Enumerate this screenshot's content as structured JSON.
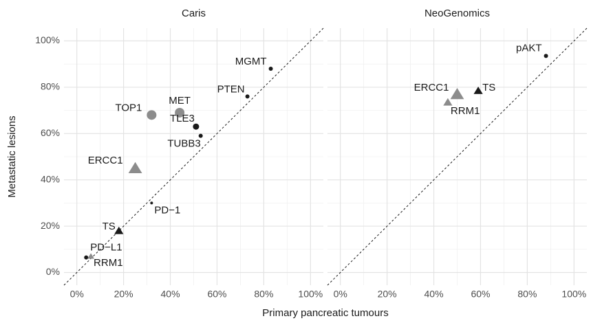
{
  "x_label": "Primary pancreatic tumours",
  "y_label": "Metastatic lesions",
  "chart_data": [
    {
      "type": "scatter",
      "title": "Caris",
      "identity_line": true,
      "grid": true,
      "minor_grid": true,
      "xlim": [
        -5.5,
        105.5
      ],
      "ylim": [
        -5.5,
        105.5
      ],
      "xticks": [
        {
          "value": 0,
          "label": "0%"
        },
        {
          "value": 20,
          "label": "20%"
        },
        {
          "value": 40,
          "label": "40%"
        },
        {
          "value": 60,
          "label": "60%"
        },
        {
          "value": 80,
          "label": "80%"
        },
        {
          "value": 100,
          "label": "100%"
        }
      ],
      "yticks": [
        {
          "value": 0,
          "label": "0%"
        },
        {
          "value": 20,
          "label": "20%"
        },
        {
          "value": 40,
          "label": "40%"
        },
        {
          "value": 60,
          "label": "60%"
        },
        {
          "value": 80,
          "label": "80%"
        },
        {
          "value": 100,
          "label": "100%"
        }
      ],
      "labels": [
        "MGMT",
        "PTEN",
        "MET",
        "TOP1",
        "TLE3",
        "TUBB3",
        "ERCC1",
        "PD−1",
        "TS",
        "PD−L1",
        "RRM1"
      ],
      "x": [
        83,
        73,
        44,
        32,
        51,
        53,
        25,
        32,
        18,
        4,
        6
      ],
      "values": [
        88,
        76,
        69,
        68,
        63,
        59,
        45,
        30,
        18,
        6.5,
        7
      ],
      "shapes": [
        "circle",
        "circle",
        "circle",
        "circle",
        "circle",
        "circle",
        "triangle",
        "circle",
        "triangle",
        "circle",
        "triangle"
      ],
      "colors": [
        "#1a1a1a",
        "#1a1a1a",
        "#8c8c8c",
        "#8c8c8c",
        "#1a1a1a",
        "#1a1a1a",
        "#8c8c8c",
        "#1a1a1a",
        "#1a1a1a",
        "#1a1a1a",
        "#8c8c8c"
      ],
      "sizes": [
        "small",
        "small",
        "large",
        "large",
        "medium",
        "small",
        "large",
        "tiny",
        "medium",
        "small",
        "small"
      ]
    },
    {
      "type": "scatter",
      "title": "NeoGenomics",
      "identity_line": true,
      "grid": true,
      "minor_grid": true,
      "xlim": [
        -5.5,
        105.5
      ],
      "ylim": [
        -5.5,
        105.5
      ],
      "xticks": [
        {
          "value": 0,
          "label": "0%"
        },
        {
          "value": 20,
          "label": "20%"
        },
        {
          "value": 40,
          "label": "40%"
        },
        {
          "value": 60,
          "label": "60%"
        },
        {
          "value": 80,
          "label": "80%"
        },
        {
          "value": 100,
          "label": "100%"
        }
      ],
      "yticks": [
        {
          "value": 0,
          "label": "0%"
        },
        {
          "value": 20,
          "label": "20%"
        },
        {
          "value": 40,
          "label": "40%"
        },
        {
          "value": 60,
          "label": "60%"
        },
        {
          "value": 80,
          "label": "80%"
        },
        {
          "value": 100,
          "label": "100%"
        }
      ],
      "labels": [
        "pAKT",
        "ERCC1",
        "TS",
        "RRM1"
      ],
      "x": [
        88,
        50,
        59,
        46
      ],
      "values": [
        93.5,
        77,
        78.5,
        73.5
      ],
      "shapes": [
        "circle",
        "triangle",
        "triangle",
        "triangle"
      ],
      "colors": [
        "#1a1a1a",
        "#8c8c8c",
        "#1a1a1a",
        "#8c8c8c"
      ],
      "sizes": [
        "small",
        "large",
        "medium",
        "medium"
      ]
    }
  ]
}
